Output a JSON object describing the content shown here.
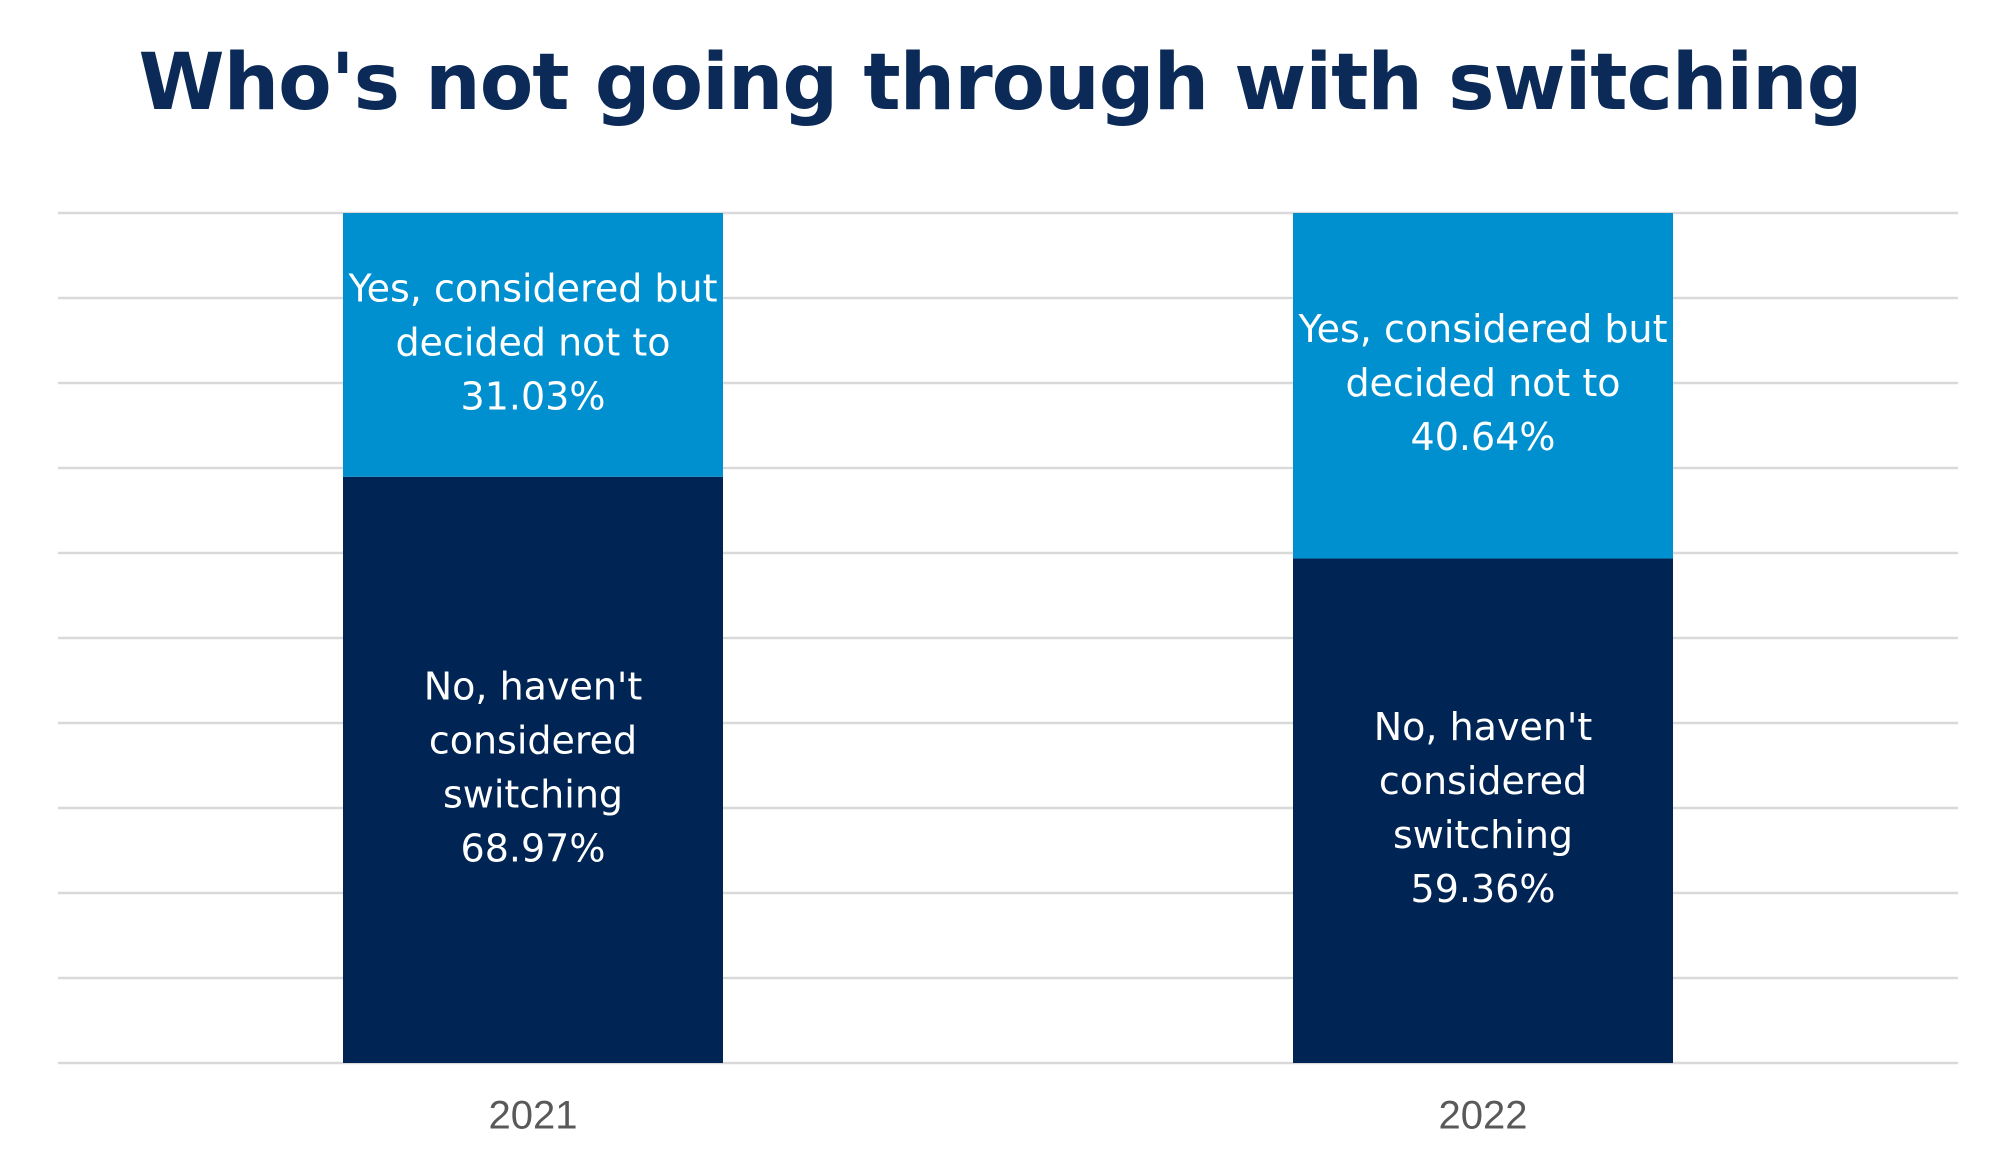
{
  "chart_data": {
    "type": "bar",
    "stacked": true,
    "title": "Who's not going through with switching",
    "xlabel": "",
    "ylabel": "",
    "categories": [
      "2021",
      "2022"
    ],
    "ylim": [
      0,
      100
    ],
    "grid": true,
    "legend": "none",
    "series": [
      {
        "name": "No, haven't considered switching",
        "label_lines": [
          "No, haven't",
          "considered",
          "switching"
        ],
        "values": [
          68.97,
          59.36
        ],
        "value_labels": [
          "68.97%",
          "59.36%"
        ],
        "color": "#002554"
      },
      {
        "name": "Yes, considered but decided not to",
        "label_lines": [
          "Yes, considered but",
          "decided not to"
        ],
        "values": [
          31.03,
          40.64
        ],
        "value_labels": [
          "31.03%",
          "40.64%"
        ],
        "color": "#0090d0"
      }
    ]
  }
}
